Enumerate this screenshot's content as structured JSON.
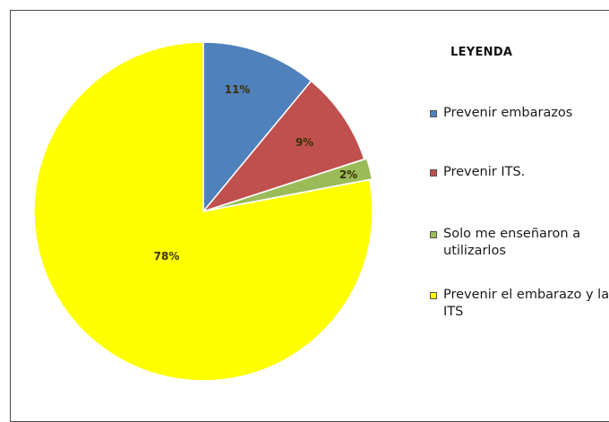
{
  "chart_data": {
    "type": "pie",
    "legend_title": "LEYENDA",
    "legend_position": "right",
    "slices": [
      {
        "label": "Prevenir embarazos",
        "value": 11,
        "display": "11%",
        "color": "#4f81bd"
      },
      {
        "label": "Prevenir ITS.",
        "value": 9,
        "display": "9%",
        "color": "#c0504d"
      },
      {
        "label": "Solo me enseñaron a utilizarlos",
        "value": 2,
        "display": "2%",
        "color": "#9bbb59"
      },
      {
        "label": "Prevenir el embarazo y las ITS",
        "value": 78,
        "display": "78%",
        "color": "#ffff00"
      }
    ]
  }
}
